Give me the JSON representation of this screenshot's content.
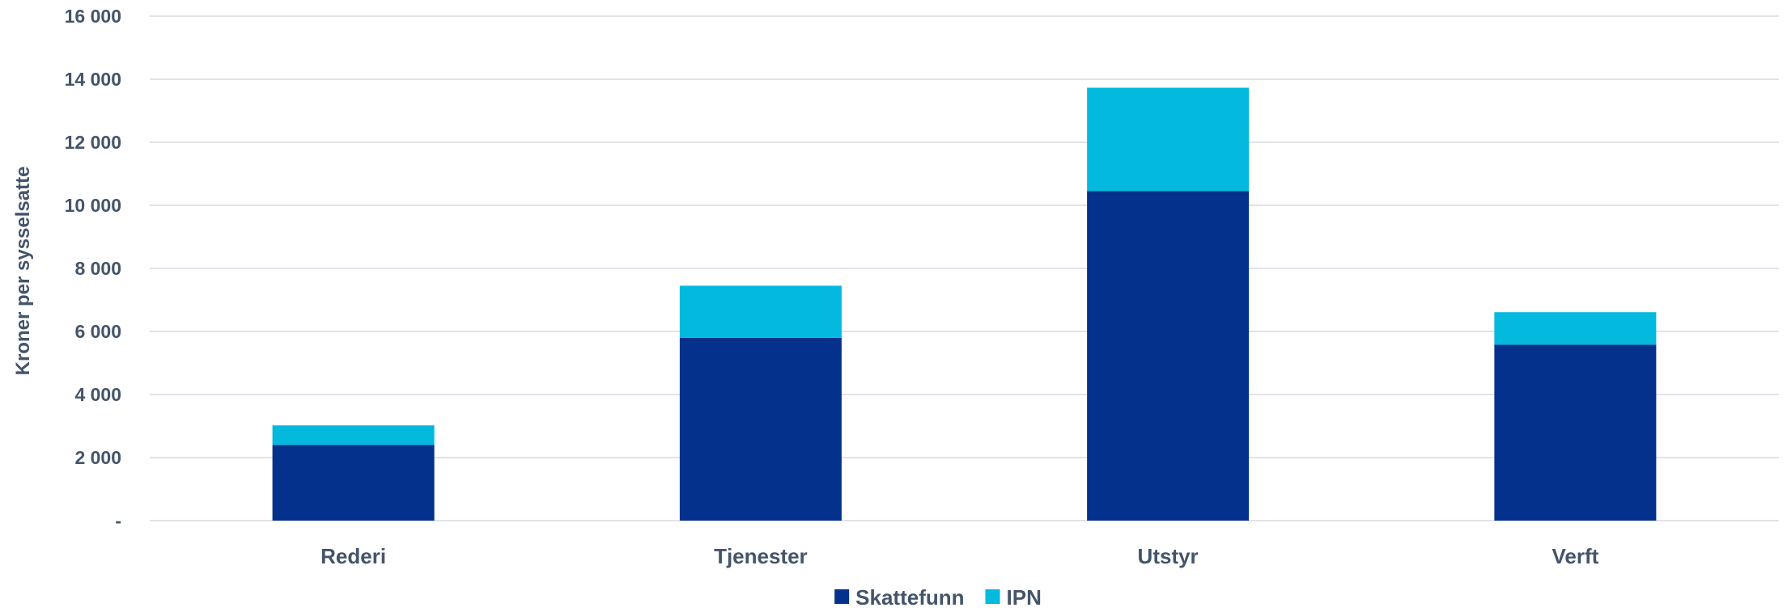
{
  "chart_data": {
    "type": "bar",
    "stacked": true,
    "categories": [
      "Rederi",
      "Tjenester",
      "Utstyr",
      "Verft"
    ],
    "series": [
      {
        "name": "Skattefunn",
        "values": [
          2400,
          5800,
          10450,
          5580
        ],
        "color": "#03318c"
      },
      {
        "name": "IPN",
        "values": [
          620,
          1650,
          3280,
          1030
        ],
        "color": "#03b9dd"
      }
    ],
    "title": "",
    "xlabel": "",
    "ylabel": "Kroner per sysselsatte",
    "ylim": [
      0,
      16000
    ],
    "yticks": [
      0,
      2000,
      4000,
      6000,
      8000,
      10000,
      12000,
      14000,
      16000
    ],
    "ytick_labels": [
      "-",
      "2 000",
      "4 000",
      "6 000",
      "8 000",
      "10 000",
      "12 000",
      "14 000",
      "16 000"
    ],
    "grid": true,
    "legend_position": "bottom"
  }
}
